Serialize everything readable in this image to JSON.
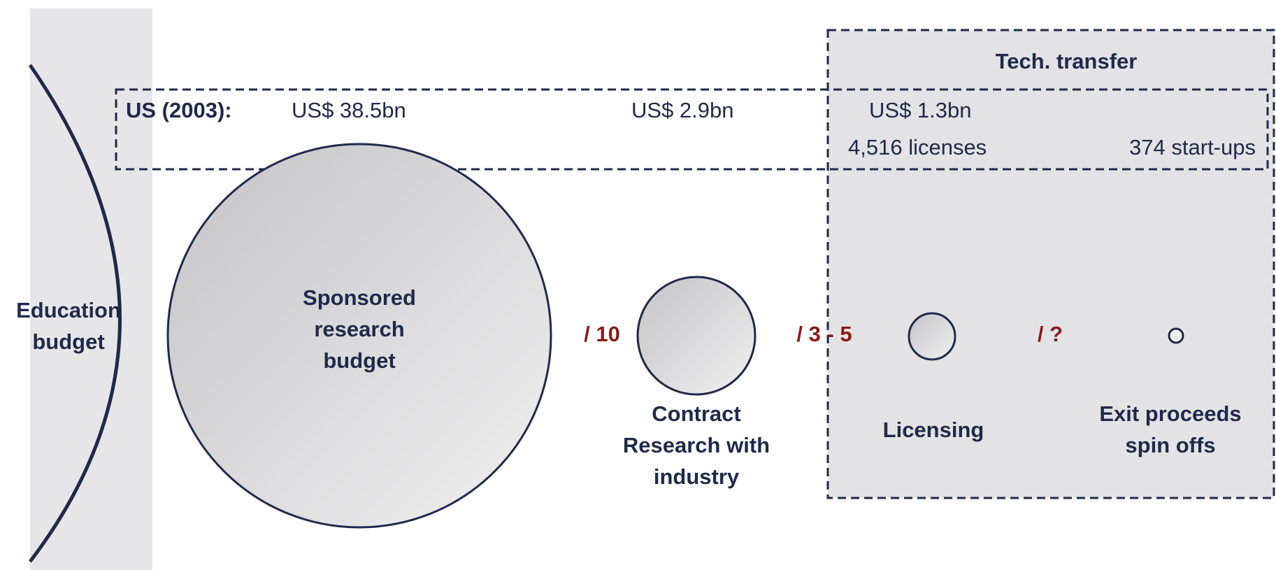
{
  "tech_transfer_label": "Tech. transfer",
  "us_row": {
    "label": "US (2003):",
    "amounts": [
      "US$ 38.5bn",
      "US$ 2.9bn",
      "US$ 1.3bn"
    ],
    "licenses": "4,516 licenses",
    "startups": "374 start-ups"
  },
  "nodes": [
    {
      "label": [
        "Education",
        "budget"
      ]
    },
    {
      "label": [
        "Sponsored",
        "research",
        "budget"
      ]
    },
    {
      "label": [
        "Contract",
        "Research with",
        "industry"
      ]
    },
    {
      "label": [
        "Licensing"
      ]
    },
    {
      "label": [
        "Exit proceeds",
        "spin offs"
      ]
    }
  ],
  "ratios": [
    "/ 10",
    "/ 3 - 5",
    "/ ?"
  ]
}
